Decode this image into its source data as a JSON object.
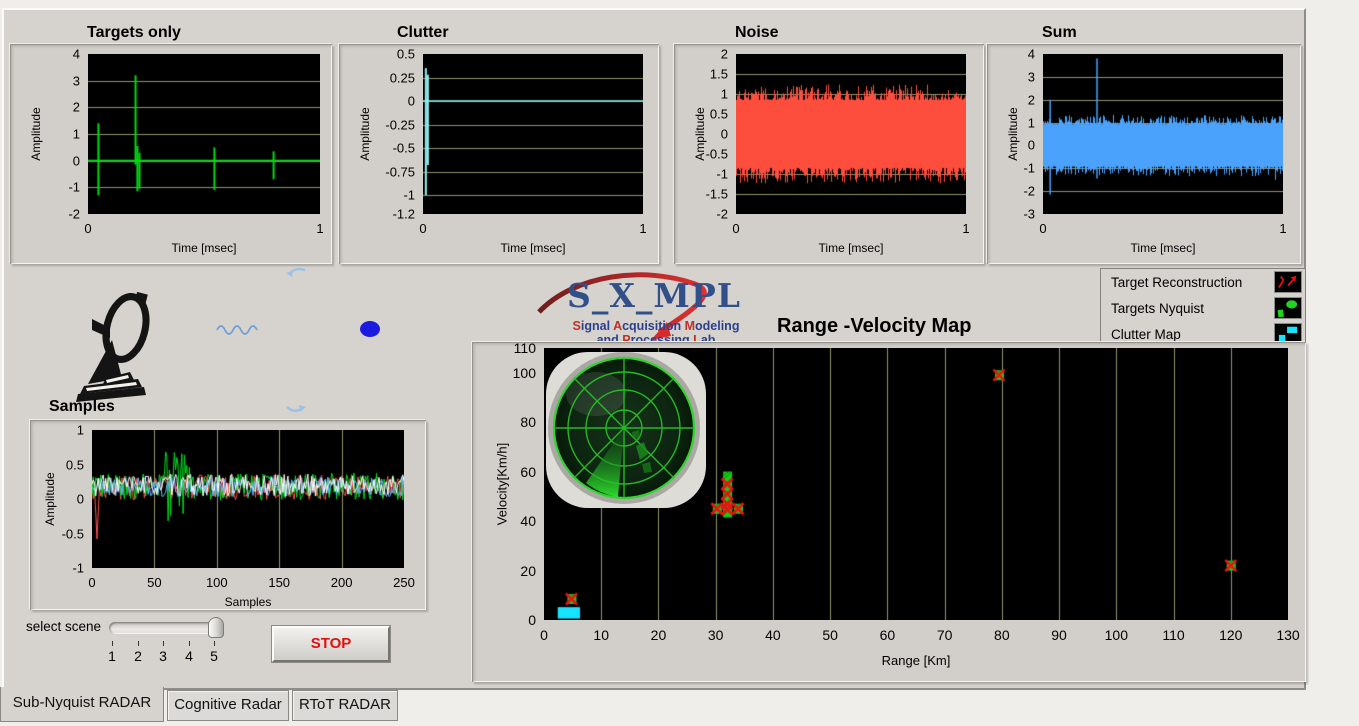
{
  "window": {
    "panel_bg": "#d6d3ce",
    "outer_bg": "#efeeeb",
    "grid_color": "#93936d",
    "plot_bg": "#000000"
  },
  "tabs": [
    {
      "label": "Sub-Nyquist RADAR",
      "active": true
    },
    {
      "label": "Cognitive Radar",
      "active": false
    },
    {
      "label": "RToT RADAR",
      "active": false
    }
  ],
  "logo": {
    "title": "S_X_MPL",
    "blue": "#2c3f8e",
    "red": "#c03028",
    "subtitle1": [
      [
        "S",
        1
      ],
      [
        "ignal ",
        0
      ],
      [
        "A",
        1
      ],
      [
        "cquisition ",
        0
      ],
      [
        "M",
        1
      ],
      [
        "odeling",
        0
      ]
    ],
    "subtitle2": [
      [
        "and ",
        0
      ],
      [
        "P",
        1
      ],
      [
        "rocessing ",
        0
      ],
      [
        "L",
        1
      ],
      [
        "ab",
        0
      ]
    ]
  },
  "legend": [
    {
      "label": "Target Reconstruction",
      "icon": "red-arrow-marker"
    },
    {
      "label": "Targets Nyquist",
      "icon": "green-blob-marker"
    },
    {
      "label": "Clutter Map",
      "icon": "cyan-square-marker"
    }
  ],
  "scene_selector": {
    "label": "select scene",
    "ticks": [
      "1",
      "2",
      "3",
      "4",
      "5"
    ],
    "value": 5
  },
  "stop_label": "STOP",
  "chart_data": [
    {
      "id": "targets-only",
      "type": "spikes",
      "title": "Targets only",
      "xlabel": "Time [msec]",
      "ylabel": "Amplitude",
      "xlim": [
        0,
        1
      ],
      "ylim": [
        -2,
        4
      ],
      "yticks": [
        4,
        3,
        2,
        1,
        0,
        -1,
        -2
      ],
      "xticks": [
        0,
        1
      ],
      "color": "#00dd11",
      "baseline": 0,
      "spikes": [
        {
          "x": 0.045,
          "up": 1.4,
          "down": -1.3
        },
        {
          "x": 0.205,
          "up": 3.2,
          "down": -0.15
        },
        {
          "x": 0.213,
          "up": 0.55,
          "down": -1.15
        },
        {
          "x": 0.222,
          "up": 0.3,
          "down": -1.05
        },
        {
          "x": 0.545,
          "up": 0.5,
          "down": -1.1
        },
        {
          "x": 0.8,
          "up": 0.35,
          "down": -0.7
        }
      ]
    },
    {
      "id": "clutter",
      "type": "spikes",
      "title": "Clutter",
      "xlabel": "Time [msec]",
      "ylabel": "Amplitude",
      "xlim": [
        0,
        1
      ],
      "ylim": [
        -1.2,
        0.5
      ],
      "yticks": [
        0.5,
        0.25,
        0,
        -0.25,
        -0.5,
        -0.75,
        -1,
        -1.2
      ],
      "xticks": [
        0,
        1
      ],
      "color": "#8ff0f0",
      "baseline": 0,
      "spikes": [
        {
          "x": 0.013,
          "up": 0.35,
          "down": -1.0
        },
        {
          "x": 0.022,
          "up": 0.28,
          "down": -0.68
        }
      ]
    },
    {
      "id": "noise",
      "type": "noise",
      "title": "Noise",
      "xlabel": "Time [msec]",
      "ylabel": "Amplitude",
      "xlim": [
        0,
        1
      ],
      "ylim": [
        -2,
        2
      ],
      "yticks": [
        2,
        1.5,
        1,
        0.5,
        0,
        -0.5,
        -1,
        -1.5,
        -2
      ],
      "xticks": [
        0,
        1
      ],
      "color": "#fd4d3d",
      "amp": 1.18,
      "seed": 7,
      "spikes": []
    },
    {
      "id": "sum",
      "type": "noise",
      "title": "Sum",
      "xlabel": "Time [msec]",
      "ylabel": "Amplitude",
      "xlim": [
        0,
        1
      ],
      "ylim": [
        -3,
        4
      ],
      "yticks": [
        4,
        3,
        2,
        1,
        0,
        -1,
        -2,
        -3
      ],
      "xticks": [
        0,
        1
      ],
      "color": "#4aa2fd",
      "amp": 1.28,
      "seed": 13,
      "spikes": [
        {
          "x": 0.03,
          "up": 2.0,
          "down": -2.15
        },
        {
          "x": 0.225,
          "up": 3.8,
          "down": -1.45
        }
      ]
    },
    {
      "id": "samples",
      "type": "multi",
      "title": "Samples",
      "xlabel": "Samples",
      "ylabel": "Amplitude",
      "xlim": [
        0,
        250
      ],
      "ylim": [
        -1,
        1
      ],
      "yticks": [
        1,
        0.5,
        0,
        -0.5,
        -1
      ],
      "xticks": [
        0,
        50,
        100,
        150,
        200,
        250
      ],
      "grid": "vertical",
      "series": [
        {
          "name": "red-trace",
          "color": "#ff4d4d",
          "mean": 0.17,
          "amp": 0.18,
          "seed": 3,
          "init_dip": -0.58
        },
        {
          "name": "green-trace",
          "color": "#00dd22",
          "mean": 0.18,
          "amp": 0.2,
          "seed": 9,
          "burst": {
            "from": 55,
            "to": 78,
            "amp": 0.52
          }
        },
        {
          "name": "blue-trace",
          "color": "#6cb4ff",
          "mean": 0.18,
          "amp": 0.15,
          "seed": 21
        },
        {
          "name": "white-trace",
          "color": "#ffffff",
          "mean": 0.2,
          "amp": 0.16,
          "seed": 33
        }
      ]
    },
    {
      "id": "range-velocity-map",
      "type": "scatter",
      "title": "Range -Velocity Map",
      "xlabel": "Range [Km]",
      "ylabel": "Velocity[Km/h]",
      "xlim": [
        0,
        130
      ],
      "ylim": [
        0,
        110
      ],
      "xticks": [
        0,
        10,
        20,
        30,
        40,
        50,
        60,
        70,
        80,
        90,
        100,
        110,
        120,
        130
      ],
      "yticks": [
        110,
        100,
        80,
        60,
        40,
        20,
        0
      ],
      "grid": "vertical",
      "clutter_rect": {
        "x0": 2.4,
        "x1": 6.3,
        "y0": 0.6,
        "y1": 5.2,
        "color": "#18e3ff"
      },
      "targets_nyquist": [
        [
          4.8,
          8.5
        ],
        [
          32,
          58
        ],
        [
          32,
          54
        ],
        [
          32,
          50
        ],
        [
          32,
          46
        ],
        [
          32,
          43.5
        ],
        [
          30.2,
          45
        ],
        [
          33.9,
          45
        ],
        [
          79.5,
          99
        ],
        [
          120,
          22
        ]
      ],
      "target_reconstruction": [
        [
          4.8,
          8.5
        ],
        [
          32,
          55
        ],
        [
          32,
          51
        ],
        [
          32,
          47
        ],
        [
          30.2,
          45
        ],
        [
          32,
          44.8
        ],
        [
          33.9,
          45
        ],
        [
          79.5,
          99
        ],
        [
          120,
          22
        ]
      ],
      "colors": {
        "nyquist": "#17cc17",
        "nyquist_hatch": "#0a8a0a",
        "recon": "#ee1111"
      }
    }
  ]
}
